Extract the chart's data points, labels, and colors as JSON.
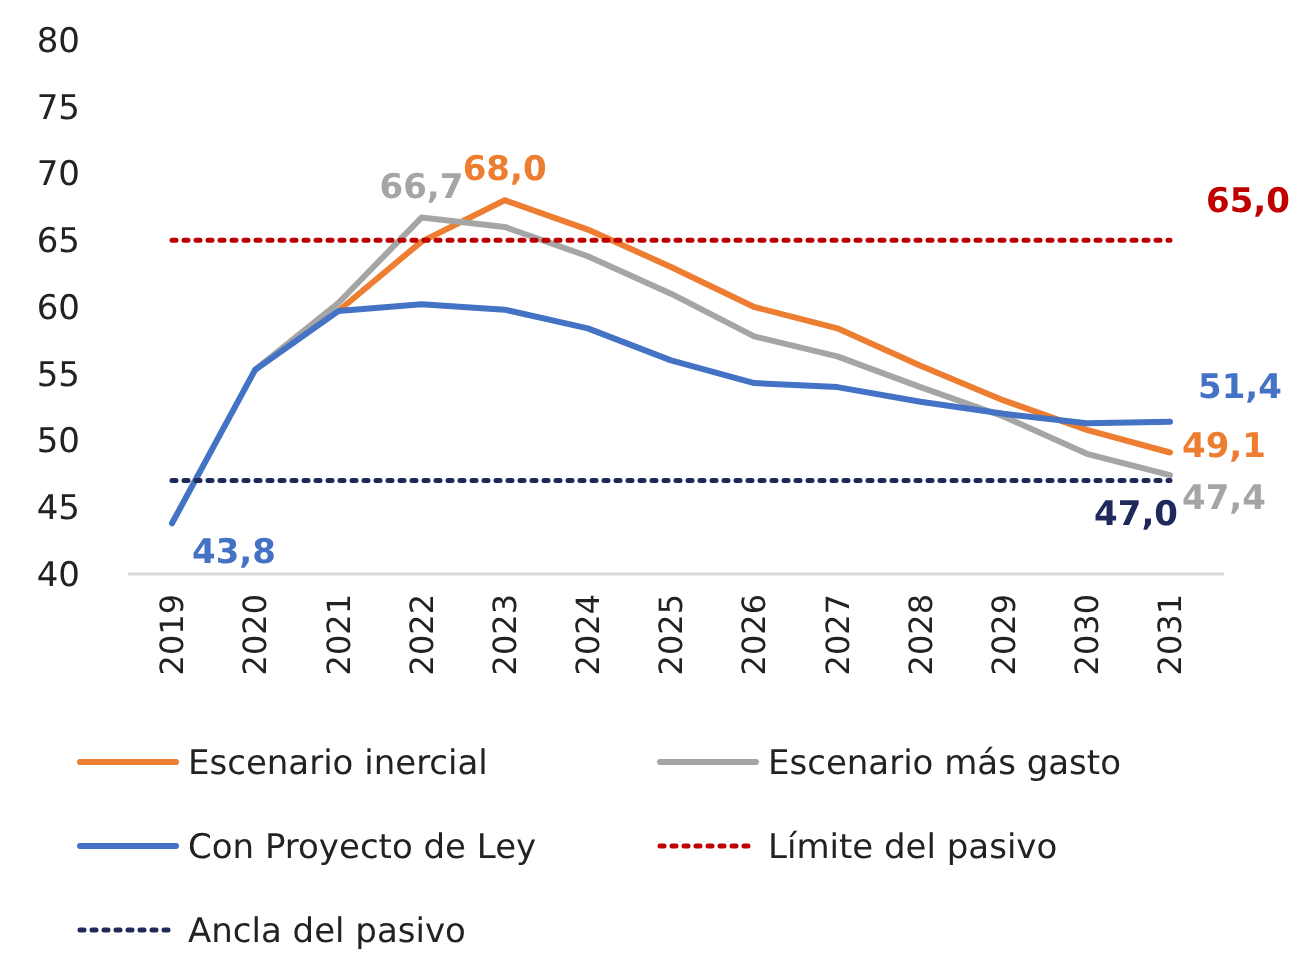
{
  "chart_data": {
    "type": "line",
    "categories": [
      "2019",
      "2020",
      "2021",
      "2022",
      "2023",
      "2024",
      "2025",
      "2026",
      "2027",
      "2028",
      "2029",
      "2030",
      "2031"
    ],
    "series": [
      {
        "name": "Escenario inercial",
        "color": "#ed7d31",
        "values": [
          null,
          null,
          59.7,
          64.9,
          68.0,
          65.8,
          63.0,
          60.0,
          58.4,
          55.6,
          53.0,
          50.8,
          49.1
        ]
      },
      {
        "name": "Escenario más gasto",
        "color": "#a5a5a5",
        "values": [
          null,
          55.3,
          60.3,
          66.7,
          66.0,
          63.8,
          61.0,
          57.8,
          56.3,
          54.0,
          51.8,
          49.0,
          47.4
        ]
      },
      {
        "name": "Con Proyecto de Ley",
        "color": "#4472c4",
        "values": [
          43.8,
          55.3,
          59.7,
          60.2,
          59.8,
          58.4,
          56.0,
          54.3,
          54.0,
          52.9,
          52.0,
          51.3,
          51.4
        ]
      },
      {
        "name": "Límite del pasivo",
        "color": "#c00000",
        "line_style": "dotted",
        "values": [
          65.0,
          65.0,
          65.0,
          65.0,
          65.0,
          65.0,
          65.0,
          65.0,
          65.0,
          65.0,
          65.0,
          65.0,
          65.0
        ]
      },
      {
        "name": "Ancla del pasivo",
        "color": "#1f2a5a",
        "line_style": "dotted",
        "values": [
          47.0,
          47.0,
          47.0,
          47.0,
          47.0,
          47.0,
          47.0,
          47.0,
          47.0,
          47.0,
          47.0,
          47.0,
          47.0
        ]
      }
    ],
    "annotations": [
      {
        "text": "43,8",
        "x": "2019",
        "y": 43.8
      },
      {
        "text": "66,7",
        "x": "2022",
        "y": 66.7
      },
      {
        "text": "68,0",
        "x": "2023",
        "y": 68.0
      },
      {
        "text": "51,4",
        "x": "2031",
        "y": 51.4
      },
      {
        "text": "49,1",
        "x": "2031",
        "y": 49.1
      },
      {
        "text": "47,4",
        "x": "2031",
        "y": 47.4
      },
      {
        "text": "65,0",
        "x": "2031",
        "y": 65.0
      },
      {
        "text": "47,0",
        "x": "2031",
        "y": 47.0
      }
    ],
    "ylim": [
      40,
      80
    ],
    "yticks": [
      40,
      45,
      50,
      55,
      60,
      65,
      70,
      75,
      80
    ],
    "grid": false,
    "legend": "bottom",
    "line_style": "solid",
    "marker": "none"
  }
}
